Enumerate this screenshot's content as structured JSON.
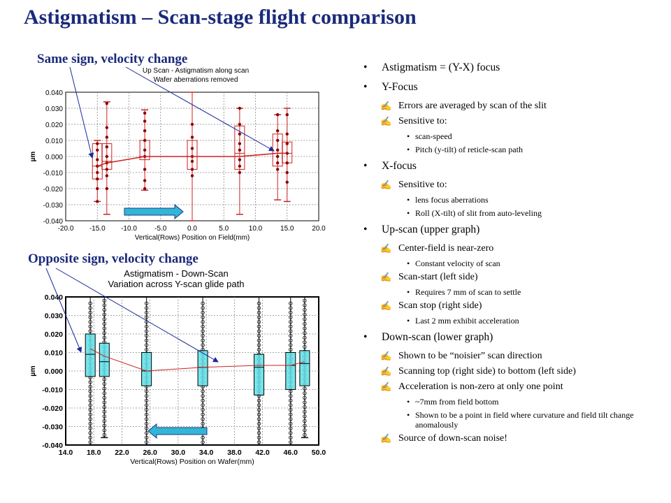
{
  "title": "Astigmatism – Scan-stage flight comparison",
  "callouts": {
    "top": "Same sign, velocity change",
    "bottom": "Opposite sign, velocity change"
  },
  "bullets": {
    "astig": "Astigmatism = (Y-X) focus",
    "yfocus": "Y-Focus",
    "yfocus_1": "Errors are averaged by scan of the slit",
    "yfocus_2": "Sensitive to:",
    "yfocus_2a": "scan-speed",
    "yfocus_2b": "Pitch (y-tilt) of reticle-scan path",
    "xfocus": "X-focus",
    "xfocus_1": "Sensitive to:",
    "xfocus_1a": "lens focus aberrations",
    "xfocus_1b": "Roll (X-tilt) of slit from auto-leveling",
    "upscan": "Up-scan (upper graph)",
    "upscan_1": "Center-field is near-zero",
    "upscan_1a": "Constant velocity of scan",
    "upscan_2": "Scan-start (left side)",
    "upscan_2a": "Requires 7 mm of scan to settle",
    "upscan_3": "Scan stop (right side)",
    "upscan_3a": "Last 2 mm exhibit acceleration",
    "downscan": "Down-scan (lower graph)",
    "downscan_1": "Shown to be “noisier” scan direction",
    "downscan_2": "Scanning top (right side) to bottom (left side)",
    "downscan_3": "Acceleration is non-zero at only one point",
    "downscan_3a": "~7mm from field bottom",
    "downscan_3b": "Shown to be a point in field where curvature and field tilt change anomalously",
    "downscan_4": "Source of down-scan noise!"
  },
  "chart_data": [
    {
      "type": "box",
      "title": "Up Scan - Astigmatism along scan",
      "subtitle": "Wafer aberrations removed",
      "xlabel": "Vertical(Rows) Position on Field(mm)",
      "ylabel": "µm",
      "xlim": [
        -20.0,
        20.0
      ],
      "ylim": [
        -0.04,
        0.04
      ],
      "xticks": [
        "-20.0",
        "-15.0",
        "-10.0",
        "-5.0",
        "0.0",
        "5.0",
        "10.0",
        "15.0",
        "20.0"
      ],
      "yticks": [
        "0.040",
        "0.030",
        "0.020",
        "0.010",
        "0.000",
        "-0.010",
        "-0.020",
        "-0.030",
        "-0.040"
      ],
      "grid": true,
      "color": "#cc2222",
      "arrow_color": "#33b5d6",
      "boxes": [
        {
          "x": -15.0,
          "min": -0.028,
          "q1": -0.014,
          "median": -0.006,
          "q3": 0.008,
          "max": 0.01,
          "points": [
            0.008,
            0.004,
            -0.002,
            -0.006,
            -0.01,
            -0.014,
            -0.02,
            -0.028
          ]
        },
        {
          "x": -13.5,
          "min": -0.036,
          "q1": -0.008,
          "median": -0.003,
          "q3": 0.008,
          "max": 0.034,
          "points": [
            0.033,
            0.018,
            0.012,
            0.006,
            0.0,
            -0.004,
            -0.008,
            -0.012,
            -0.02
          ]
        },
        {
          "x": -7.5,
          "min": -0.021,
          "q1": -0.002,
          "median": 0.0,
          "q3": 0.01,
          "max": 0.029,
          "points": [
            0.027,
            0.022,
            0.016,
            0.01,
            0.004,
            0.0,
            -0.008,
            -0.015,
            -0.02
          ]
        },
        {
          "x": 0.0,
          "min": -0.04,
          "q1": -0.008,
          "median": 0.0,
          "q3": 0.01,
          "max": 0.04,
          "points": [
            0.02,
            0.012,
            0.005,
            0.0,
            -0.003,
            -0.008,
            -0.012
          ]
        },
        {
          "x": 7.5,
          "min": -0.036,
          "q1": -0.008,
          "median": 0.002,
          "q3": 0.019,
          "max": 0.03,
          "points": [
            0.03,
            0.02,
            0.014,
            0.008,
            0.004,
            -0.002,
            -0.006,
            -0.01
          ]
        },
        {
          "x": 13.5,
          "min": -0.027,
          "q1": -0.006,
          "median": 0.002,
          "q3": 0.014,
          "max": 0.026,
          "points": [
            0.026,
            0.016,
            0.01,
            0.004,
            0.0,
            -0.004,
            -0.008
          ]
        },
        {
          "x": 15.0,
          "min": -0.028,
          "q1": -0.004,
          "median": 0.002,
          "q3": 0.009,
          "max": 0.03,
          "points": [
            0.026,
            0.014,
            0.008,
            0.002,
            -0.004,
            -0.01,
            -0.016
          ]
        }
      ],
      "mean_line": [
        [
          -15.0,
          -0.006
        ],
        [
          -13.5,
          -0.004
        ],
        [
          -7.5,
          0.0
        ],
        [
          0.0,
          0.0
        ],
        [
          7.5,
          0.0
        ],
        [
          13.5,
          0.002
        ],
        [
          15.0,
          0.002
        ]
      ]
    },
    {
      "type": "box",
      "title": "Astigmatism - Down-Scan",
      "subtitle": "Variation across Y-scan glide path",
      "xlabel": "Vertical(Rows) Position on Wafer(mm)",
      "ylabel": "µm",
      "xlim": [
        14.0,
        50.0
      ],
      "ylim": [
        -0.04,
        0.04
      ],
      "xticks": [
        "14.0",
        "18.0",
        "22.0",
        "26.0",
        "30.0",
        "34.0",
        "38.0",
        "42.0",
        "46.0",
        "50.0"
      ],
      "yticks": [
        "0.040",
        "0.030",
        "0.020",
        "0.010",
        "0.000",
        "-0.010",
        "-0.020",
        "-0.030",
        "-0.040"
      ],
      "grid": true,
      "color": "#000000",
      "box_fill": "#5fe0e8",
      "line_color": "#cc2222",
      "arrow_color": "#33b5d6",
      "boxes": [
        {
          "x": 17.5,
          "min": -0.04,
          "q1": -0.003,
          "median": 0.009,
          "q3": 0.02,
          "max": 0.04
        },
        {
          "x": 19.5,
          "min": -0.036,
          "q1": -0.003,
          "median": 0.005,
          "q3": 0.015,
          "max": 0.04
        },
        {
          "x": 25.5,
          "min": -0.04,
          "q1": -0.008,
          "median": 0.0,
          "q3": 0.01,
          "max": 0.04
        },
        {
          "x": 33.5,
          "min": -0.04,
          "q1": -0.008,
          "median": 0.002,
          "q3": 0.011,
          "max": 0.04
        },
        {
          "x": 41.5,
          "min": -0.04,
          "q1": -0.013,
          "median": 0.002,
          "q3": 0.009,
          "max": 0.04
        },
        {
          "x": 46.0,
          "min": -0.04,
          "q1": -0.01,
          "median": 0.003,
          "q3": 0.01,
          "max": 0.04
        },
        {
          "x": 48.0,
          "min": -0.036,
          "q1": -0.008,
          "median": 0.004,
          "q3": 0.011,
          "max": 0.04
        }
      ],
      "mean_line": [
        [
          17.5,
          0.012
        ],
        [
          19.5,
          0.008
        ],
        [
          25.5,
          0.0
        ],
        [
          33.5,
          0.002
        ],
        [
          41.5,
          0.003
        ],
        [
          46.0,
          0.003
        ],
        [
          48.0,
          0.005
        ]
      ]
    }
  ]
}
